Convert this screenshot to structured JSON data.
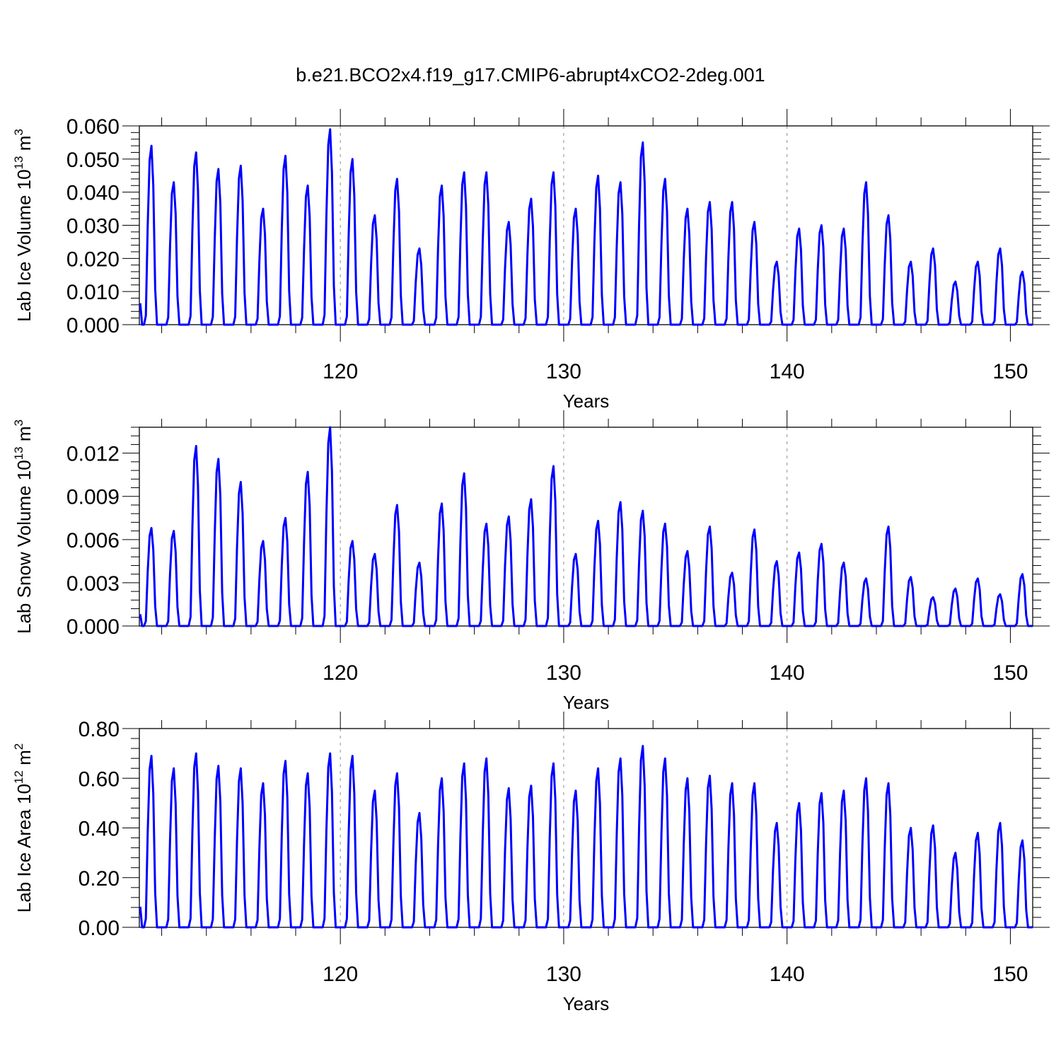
{
  "title": "b.e21.BCO2x4.f19_g17.CMIP6-abrupt4xCO2-2deg.001",
  "line_color": "#0000ff",
  "chart_data": [
    {
      "type": "line",
      "ylabel": {
        "main": "Lab Ice Volume 10",
        "exp": "13",
        "unit": " m",
        "unit_exp": "3"
      },
      "xlabel": "Years",
      "xlim": [
        111,
        151
      ],
      "ylim": [
        0,
        0.06
      ],
      "yticks": [
        0,
        0.01,
        0.02,
        0.03,
        0.04,
        0.05,
        0.06
      ],
      "ytick_labels": [
        "0.000",
        "0.010",
        "0.020",
        "0.030",
        "0.040",
        "0.050",
        "0.060"
      ],
      "xticks": [
        120,
        130,
        140,
        150
      ],
      "xtick_labels": [
        "120",
        "130",
        "140",
        "150"
      ],
      "grid_x": [
        120,
        130,
        140
      ],
      "series": [
        {
          "start_year": 111,
          "annual_peaks": [
            0.054,
            0.043,
            0.052,
            0.047,
            0.048,
            0.035,
            0.051,
            0.042,
            0.059,
            0.05,
            0.033,
            0.044,
            0.023,
            0.042,
            0.046,
            0.046,
            0.031,
            0.038,
            0.046,
            0.035,
            0.045,
            0.043,
            0.055,
            0.044,
            0.035,
            0.037,
            0.037,
            0.031,
            0.019,
            0.029,
            0.03,
            0.029,
            0.043,
            0.033,
            0.019,
            0.023,
            0.013,
            0.019,
            0.023,
            0.016
          ]
        }
      ]
    },
    {
      "type": "line",
      "ylabel": {
        "main": "Lab Snow Volume 10",
        "exp": "13",
        "unit": " m",
        "unit_exp": "3"
      },
      "xlabel": "Years",
      "xlim": [
        111,
        151
      ],
      "ylim": [
        0,
        0.0138
      ],
      "yticks": [
        0,
        0.003,
        0.006,
        0.009,
        0.012
      ],
      "ytick_labels": [
        "0.000",
        "0.003",
        "0.006",
        "0.009",
        "0.012"
      ],
      "xticks": [
        120,
        130,
        140,
        150
      ],
      "xtick_labels": [
        "120",
        "130",
        "140",
        "150"
      ],
      "grid_x": [
        120,
        130,
        140
      ],
      "series": [
        {
          "start_year": 111,
          "annual_peaks": [
            0.0068,
            0.0066,
            0.0125,
            0.0116,
            0.01,
            0.0059,
            0.0075,
            0.0107,
            0.0138,
            0.0059,
            0.005,
            0.0084,
            0.0044,
            0.0085,
            0.0106,
            0.0071,
            0.0076,
            0.0088,
            0.0111,
            0.005,
            0.0073,
            0.0086,
            0.008,
            0.0071,
            0.0052,
            0.0069,
            0.0037,
            0.0067,
            0.0045,
            0.0051,
            0.0057,
            0.0044,
            0.0033,
            0.0069,
            0.0034,
            0.002,
            0.0026,
            0.0033,
            0.0022,
            0.0036
          ]
        }
      ]
    },
    {
      "type": "line",
      "ylabel": {
        "main": "Lab Ice Area 10",
        "exp": "12",
        "unit": " m",
        "unit_exp": "2"
      },
      "xlabel": "Years",
      "xlim": [
        111,
        151
      ],
      "ylim": [
        0,
        0.8
      ],
      "yticks": [
        0,
        0.2,
        0.4,
        0.6,
        0.8
      ],
      "ytick_labels": [
        "0.00",
        "0.20",
        "0.40",
        "0.60",
        "0.80"
      ],
      "xticks": [
        120,
        130,
        140,
        150
      ],
      "xtick_labels": [
        "120",
        "130",
        "140",
        "150"
      ],
      "grid_x": [
        120,
        130,
        140
      ],
      "series": [
        {
          "start_year": 111,
          "annual_peaks": [
            0.69,
            0.64,
            0.7,
            0.65,
            0.64,
            0.58,
            0.67,
            0.62,
            0.7,
            0.69,
            0.55,
            0.62,
            0.46,
            0.6,
            0.66,
            0.68,
            0.56,
            0.57,
            0.66,
            0.55,
            0.64,
            0.68,
            0.73,
            0.68,
            0.6,
            0.61,
            0.58,
            0.58,
            0.42,
            0.5,
            0.54,
            0.55,
            0.6,
            0.58,
            0.4,
            0.41,
            0.3,
            0.38,
            0.42,
            0.35
          ]
        }
      ]
    }
  ]
}
